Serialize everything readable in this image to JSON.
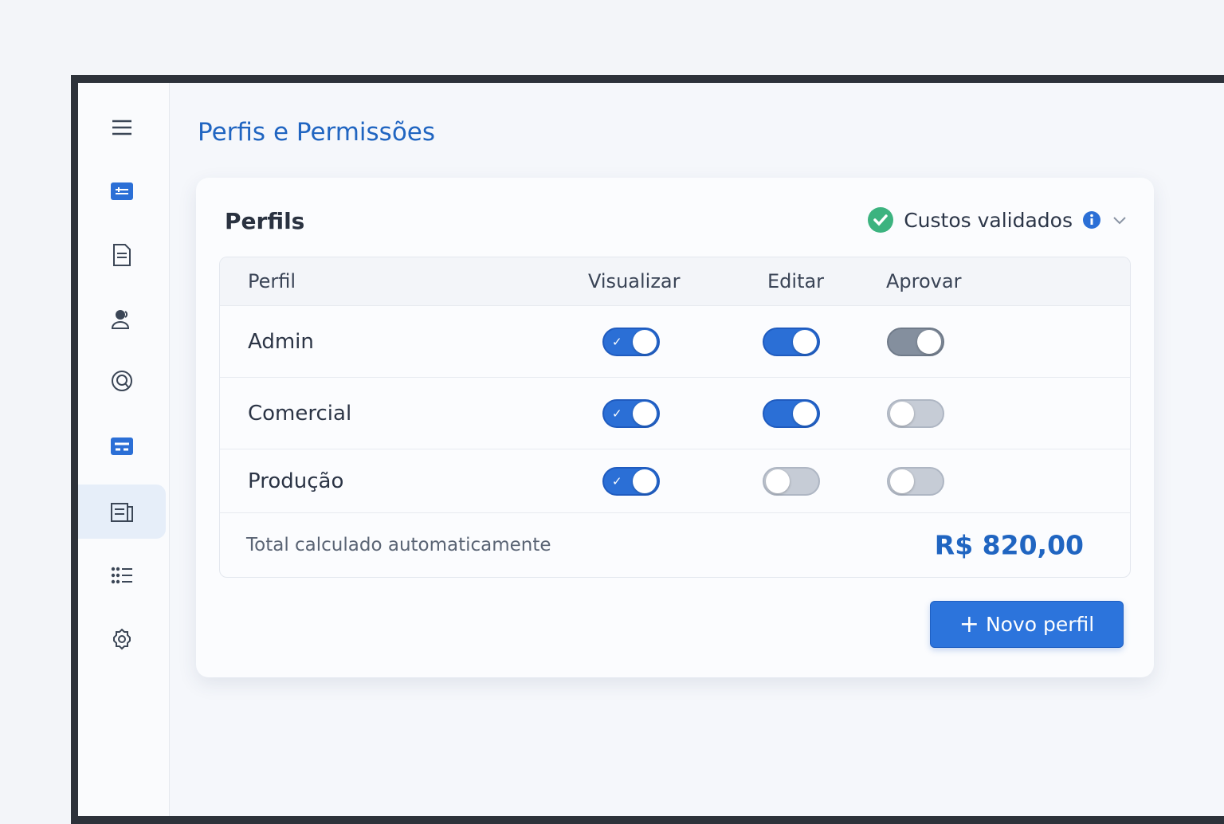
{
  "page": {
    "title": "Perfis e Permissões"
  },
  "sidebar": {
    "items": [
      {
        "icon": "menu-icon"
      },
      {
        "icon": "sliders-icon"
      },
      {
        "icon": "document-icon"
      },
      {
        "icon": "user-icon"
      },
      {
        "icon": "at-icon"
      },
      {
        "icon": "card-icon"
      },
      {
        "icon": "newspaper-icon",
        "active": true
      },
      {
        "icon": "list-icon"
      },
      {
        "icon": "gear-icon"
      }
    ]
  },
  "card": {
    "title": "Perfils",
    "status": {
      "label": "Custos validados",
      "icon": "check-circle-icon",
      "info_icon": "info-icon",
      "color": "#3cb37f"
    }
  },
  "table": {
    "headers": [
      "Perfil",
      "Visualizar",
      "Editar",
      "Aprovar"
    ],
    "rows": [
      {
        "name": "Admin",
        "visualizar": true,
        "editar": true,
        "aprovar": true
      },
      {
        "name": "Comercial",
        "visualizar": true,
        "editar": true,
        "aprovar": false
      },
      {
        "name": "Produção",
        "visualizar": true,
        "editar": false,
        "aprovar": false
      }
    ],
    "footer": {
      "label": "Total calculado automaticamente",
      "total": "R$ 820,00"
    }
  },
  "actions": {
    "new_profile": "Novo perfil",
    "new_icon": "+"
  }
}
